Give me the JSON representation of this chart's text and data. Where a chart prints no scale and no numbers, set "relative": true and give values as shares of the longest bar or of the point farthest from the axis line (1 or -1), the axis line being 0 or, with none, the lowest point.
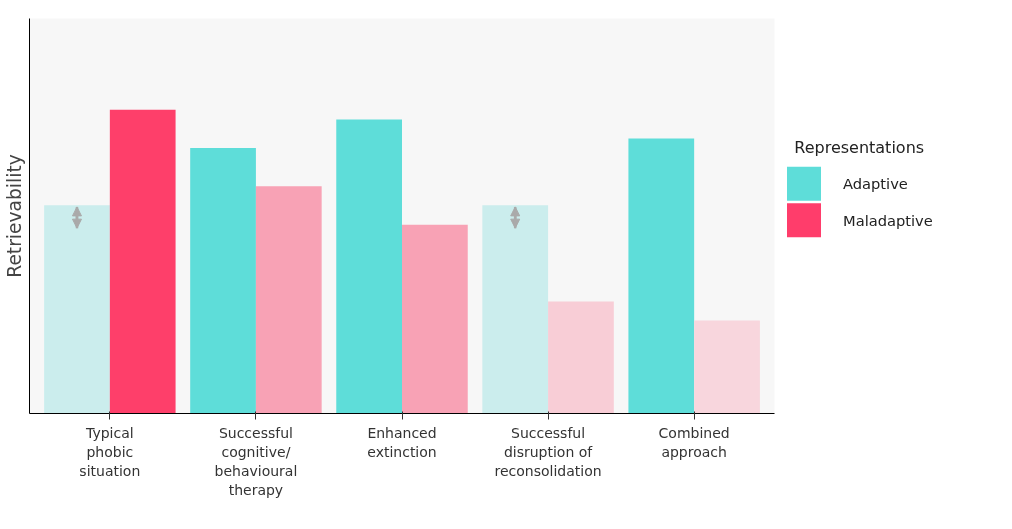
{
  "chart_data": {
    "type": "bar",
    "relative": true,
    "ylabel": "Retrievability",
    "legend_title": "Representations",
    "legend": "right",
    "grid": false,
    "categories": [
      "Typical\nphobic\nsituation",
      "Successful\ncognitive/\nbehavioural\ntherapy",
      "Enhanced\nextinction",
      "Successful\ndisruption of\nreconsolidation",
      "Combined\napproach"
    ],
    "series": [
      {
        "name": "Adaptive",
        "color": "#5eddd9",
        "colors": [
          "#cbeded",
          "#5eddd9",
          "#5eddd9",
          "#cbeded",
          "#5eddd9"
        ],
        "values": [
          0.685,
          0.874,
          0.968,
          0.685,
          0.905
        ]
      },
      {
        "name": "Maladaptive",
        "color": "#ff3d6b",
        "colors": [
          "#fe3f6a",
          "#f8a2b5",
          "#f8a2b5",
          "#f8cdd6",
          "#f8d6dd"
        ],
        "values": [
          1.0,
          0.748,
          0.621,
          0.369,
          0.306
        ]
      }
    ]
  }
}
